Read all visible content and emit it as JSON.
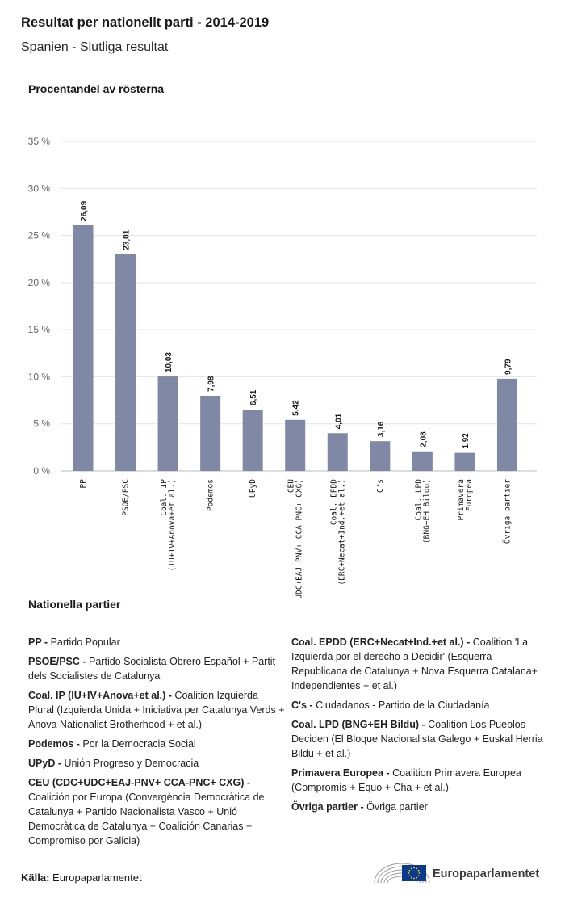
{
  "header": {
    "title": "Resultat per nationellt parti - 2014-2019",
    "subtitle": "Spanien - Slutliga resultat"
  },
  "chart_data": {
    "type": "bar",
    "ylabel": "Procentandel av rösterna",
    "ylim": [
      0,
      35
    ],
    "yticks": [
      "0 %",
      "5 %",
      "10 %",
      "15 %",
      "20 %",
      "25 %",
      "30 %",
      "35 %"
    ],
    "grid": true,
    "bar_color": "#7f88a5",
    "categories": [
      "PP",
      "PSOE/PSC",
      "Coal. IP (IU+IV+Anova+et al.)",
      "Podemos",
      "UPyD",
      "CEU (CDC+UDC+EAJ-PNV+ CCA-PNC+ CXG)",
      "Coal. EPDD (ERC+Necat+Ind.+et al.)",
      "C's",
      "Coal. LPD (BNG+EH Bildu)",
      "Primavera Europea",
      "Övriga partier"
    ],
    "values": [
      26.09,
      23.01,
      10.03,
      7.98,
      6.51,
      5.42,
      4.01,
      3.16,
      2.08,
      1.92,
      9.79
    ],
    "value_labels": [
      "26,09",
      "23,01",
      "10,03",
      "7,98",
      "6,51",
      "5,42",
      "4,01",
      "3,16",
      "2,08",
      "1,92",
      "9,79"
    ]
  },
  "legend": {
    "heading": "Nationella partier",
    "left": [
      {
        "abbr": "PP -",
        "desc": "Partido Popular"
      },
      {
        "abbr": "PSOE/PSC -",
        "desc": "Partido Socialista Obrero Español + Partit dels Socialistes de Catalunya"
      },
      {
        "abbr": "Coal. IP (IU+IV+Anova+et al.) -",
        "desc": "Coalition Izquierda Plural (Izquierda Unida + Iniciativa per Catalunya Verds + Anova Nationalist Brotherhood + et al.)"
      },
      {
        "abbr": "Podemos -",
        "desc": "Por la Democracia Social"
      },
      {
        "abbr": "UPyD -",
        "desc": "Unión Progreso y Democracia"
      },
      {
        "abbr": "CEU (CDC+UDC+EAJ-PNV+ CCA-PNC+ CXG) -",
        "desc": "Coalición por Europa (Convergència Democràtica de Catalunya + Partido Nacionalista Vasco + Unió Democràtica de Catalunya + Coalición Canarias + Compromiso por Galicia)"
      }
    ],
    "right": [
      {
        "abbr": "Coal. EPDD (ERC+Necat+Ind.+et al.) -",
        "desc": "Coalition 'La Izquierda por el derecho a Decidir' (Esquerra Republicana de Catalunya + Nova Esquerra Catalana+ Independientes + et al.)"
      },
      {
        "abbr": "C's -",
        "desc": "Ciudadanos - Partido de la Ciudadanía"
      },
      {
        "abbr": "Coal. LPD (BNG+EH Bildu) -",
        "desc": "Coalition Los Pueblos Deciden (El Bloque Nacionalista Galego + Euskal Herria Bildu + et al.)"
      },
      {
        "abbr": "Primavera Europea -",
        "desc": "Coalition Primavera Europea (Compromís + Equo + Cha + et al.)"
      },
      {
        "abbr": "Övriga partier -",
        "desc": "Övriga partier"
      }
    ]
  },
  "footer": {
    "source_label": "Källa:",
    "source_value": "Europaparlamentet",
    "brand": "Europaparlamentet",
    "brand_color": "#0a3b8f",
    "star_color": "#ffd500"
  }
}
